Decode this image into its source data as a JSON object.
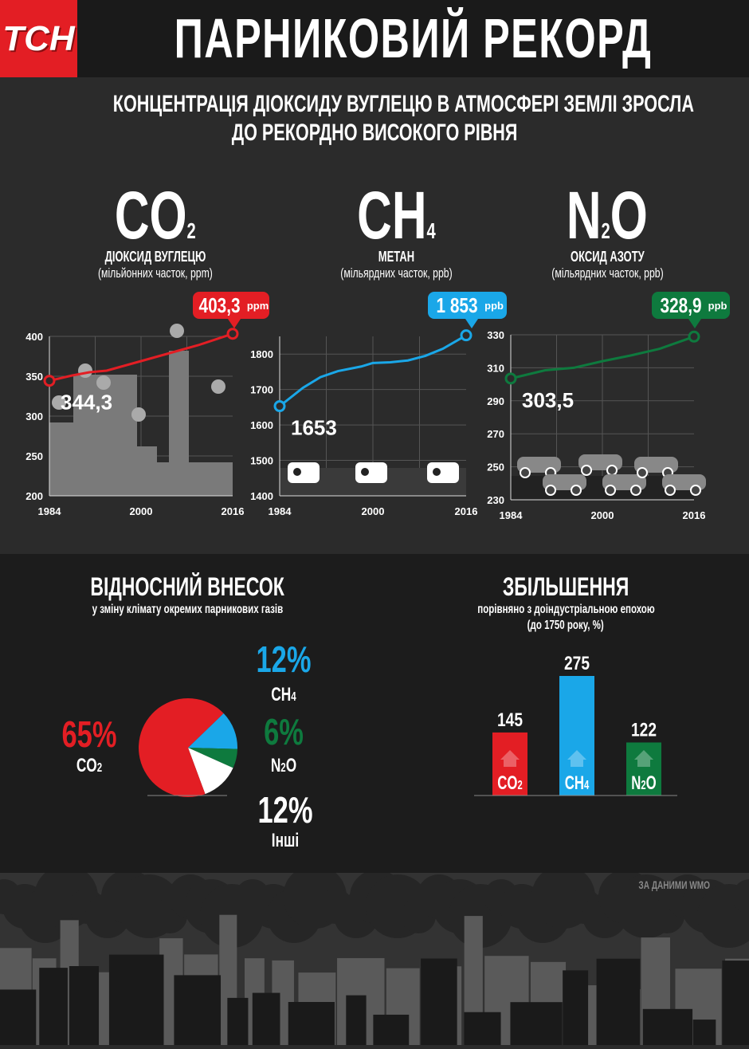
{
  "header": {
    "logo": "ТСН",
    "title": "ПАРНИКОВИЙ РЕКОРД"
  },
  "intro": {
    "line1": "КОНЦЕНТРАЦІЯ ДІОКСИДУ ВУГЛЕЦЮ В АТМОСФЕРІ ЗЕМЛІ ЗРОСЛА",
    "line2": "ДО РЕКОРДНО ВИСОКОГО РІВНЯ"
  },
  "gases": [
    {
      "formula": "CO",
      "sub": "2",
      "name": "ДІОКСИД ВУГЛЕЦЮ",
      "unit": "(мільйонних часток, ppm)",
      "latest": "403,3",
      "latest_unit": "ppm",
      "first": "344,3",
      "color": "#e31e24"
    },
    {
      "formula": "CH",
      "sub": "4",
      "name": "МЕТАН",
      "unit": "(мільярдних часток, ppb)",
      "latest": "1 853",
      "latest_unit": "ppb",
      "first": "1653",
      "color": "#1aa7e8"
    },
    {
      "formula": "N",
      "sub": "2",
      "formula2": "O",
      "name": "ОКСИД АЗОТУ",
      "unit": "(мільярдних часток, ppb)",
      "latest": "328,9",
      "latest_unit": "ppb",
      "first": "303,5",
      "color": "#0e7a3e"
    }
  ],
  "chart_data": [
    {
      "type": "line",
      "series": [
        {
          "x": [
            1984,
            1988,
            1991,
            1994,
            2000,
            2005,
            2010,
            2016
          ],
          "values": [
            344.3,
            351,
            355,
            357,
            369,
            379,
            389,
            403.3
          ]
        }
      ],
      "xticks": [
        1984,
        2000,
        2016
      ],
      "yticks": [
        200,
        250,
        300,
        350,
        400
      ],
      "ylim": [
        200,
        400
      ],
      "xlim": [
        1984,
        2016
      ],
      "grid": true,
      "color": "#e31e24",
      "illustration": "factories"
    },
    {
      "type": "line",
      "series": [
        {
          "x": [
            1984,
            1988,
            1991,
            1994,
            1998,
            2000,
            2003,
            2006,
            2009,
            2012,
            2016
          ],
          "values": [
            1653,
            1705,
            1735,
            1752,
            1765,
            1775,
            1777,
            1782,
            1795,
            1815,
            1853
          ]
        }
      ],
      "xticks": [
        1984,
        2000,
        2016
      ],
      "yticks": [
        1400,
        1500,
        1600,
        1700,
        1800
      ],
      "ylim": [
        1400,
        1850
      ],
      "xlim": [
        1984,
        2016
      ],
      "grid": true,
      "color": "#1aa7e8",
      "illustration": "cows"
    },
    {
      "type": "line",
      "series": [
        {
          "x": [
            1984,
            1990,
            1995,
            2000,
            2005,
            2010,
            2016
          ],
          "values": [
            303.5,
            308.5,
            310,
            314,
            317.5,
            321.5,
            328.9
          ]
        }
      ],
      "xticks": [
        1984,
        2000,
        2016
      ],
      "yticks": [
        230,
        250,
        270,
        290,
        310,
        330
      ],
      "ylim": [
        230,
        330
      ],
      "xlim": [
        1984,
        2016
      ],
      "grid": true,
      "color": "#0e7a3e",
      "illustration": "cars"
    },
    {
      "type": "pie",
      "title": "ВІДНОСНИЙ ВНЕСОК",
      "subtitle": "у зміну клімату окремих парникових газів",
      "slices": [
        {
          "label": "CH",
          "sub": "4",
          "value": 12,
          "text": "12%",
          "color": "#1aa7e8"
        },
        {
          "label": "N",
          "sub": "2",
          "label2": "O",
          "value": 6,
          "text": "6%",
          "color": "#0e7a3e"
        },
        {
          "label": "Інші",
          "value": 12,
          "text": "12%",
          "color": "#ffffff"
        },
        {
          "label": "CO",
          "sub": "2",
          "value": 65,
          "text": "65%",
          "color": "#e31e24"
        }
      ]
    },
    {
      "type": "bar",
      "title": "ЗБІЛЬШЕННЯ",
      "subtitle": "порівняно з доіндустріальною епохою",
      "subtitle2": "(до 1750 року, %)",
      "categories": [
        {
          "label": "CO",
          "sub": "2"
        },
        {
          "label": "CH",
          "sub": "4"
        },
        {
          "label": "N",
          "sub": "2",
          "label2": "O"
        }
      ],
      "values": [
        145,
        275,
        122
      ],
      "colors": [
        "#e31e24",
        "#1aa7e8",
        "#0e7a3e"
      ]
    }
  ],
  "footer": {
    "source": "ЗА ДАНИМИ WMO"
  }
}
